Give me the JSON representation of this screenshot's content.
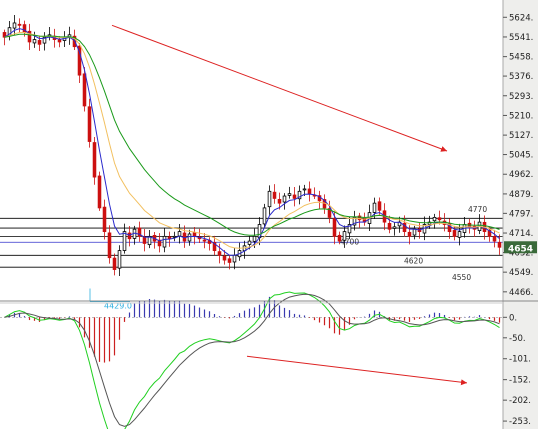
{
  "colors": {
    "background": "#ffffff",
    "axis_panel": "#eeeeec",
    "up_candle": "#000000",
    "down_candle": "#cc1010",
    "ma_blue": "#2a2acc",
    "ma_orange": "#f2c060",
    "ma_green": "#1a9a1a",
    "trend_arrow": "#dd2222",
    "hist_pos": "#3a3ab0",
    "hist_neg": "#cc2020",
    "osc_green": "#20d020",
    "osc_black": "#555555",
    "hline_black": "#000000",
    "hline_blue": "#3030cc",
    "price_tag_bg": "#3a6a3a",
    "support_label": "#30b0e0"
  },
  "chart_data": [
    {
      "type": "candlestick",
      "panel": "price",
      "ylim": [
        4440,
        5680
      ],
      "y_ticks": [
        "5624.",
        "5541.",
        "5458.",
        "5376.",
        "5293.",
        "5210.",
        "5127.",
        "5045.",
        "4962.",
        "4879.",
        "4797.",
        "4714.",
        "4632.",
        "4549.",
        "4466."
      ],
      "y_tick_values": [
        5624,
        5541,
        5458,
        5376,
        5293,
        5210,
        5127,
        5045,
        4962,
        4879,
        4797,
        4714,
        4632,
        4549,
        4466
      ],
      "last_price_label": "4654",
      "last_price": 4654,
      "horizontal_levels": [
        {
          "value": 4776,
          "color": "black"
        },
        {
          "value": 4735,
          "color": "black"
        },
        {
          "value": 4700,
          "color": "black"
        },
        {
          "value": 4675,
          "color": "blue"
        },
        {
          "value": 4620,
          "color": "black"
        },
        {
          "value": 4570,
          "color": "black"
        }
      ],
      "annotations": [
        {
          "text": "4770",
          "value": 4770
        },
        {
          "text": "4700",
          "value": 4700
        },
        {
          "text": "4620",
          "value": 4620
        },
        {
          "text": "4550",
          "value": 4550
        },
        {
          "text": "4429.0",
          "value": 4429
        }
      ],
      "trend_arrow": {
        "from": [
          22,
          5590
        ],
        "to": [
          89,
          5060
        ]
      },
      "closes": [
        5540,
        5580,
        5600,
        5590,
        5560,
        5520,
        5530,
        5510,
        5540,
        5550,
        5530,
        5520,
        5540,
        5550,
        5500,
        5380,
        5250,
        5100,
        4950,
        4820,
        4720,
        4610,
        4560,
        4640,
        4720,
        4690,
        4730,
        4700,
        4670,
        4700,
        4680,
        4660,
        4700,
        4690,
        4700,
        4720,
        4680,
        4710,
        4700,
        4690,
        4680,
        4670,
        4640,
        4620,
        4600,
        4590,
        4620,
        4640,
        4660,
        4680,
        4700,
        4750,
        4820,
        4890,
        4860,
        4840,
        4870,
        4880,
        4860,
        4890,
        4900,
        4880,
        4870,
        4850,
        4820,
        4780,
        4700,
        4680,
        4720,
        4750,
        4780,
        4770,
        4760,
        4800,
        4840,
        4810,
        4760,
        4730,
        4740,
        4760,
        4720,
        4700,
        4730,
        4720,
        4750,
        4760,
        4780,
        4770,
        4750,
        4720,
        4700,
        4720,
        4750,
        4740,
        4730,
        4760,
        4720,
        4700,
        4680,
        4654
      ]
    },
    {
      "type": "oscillator",
      "panel": "indicator",
      "ylim": [
        -265,
        30
      ],
      "y_ticks": [
        "0.",
        "-50.",
        "-101.",
        "-152.",
        "-202.",
        "-253."
      ],
      "y_tick_values": [
        0,
        -50,
        -101,
        -152,
        -202,
        -253
      ],
      "trend_arrow": {
        "from": [
          49,
          -95
        ],
        "to": [
          93,
          -160
        ]
      }
    }
  ]
}
